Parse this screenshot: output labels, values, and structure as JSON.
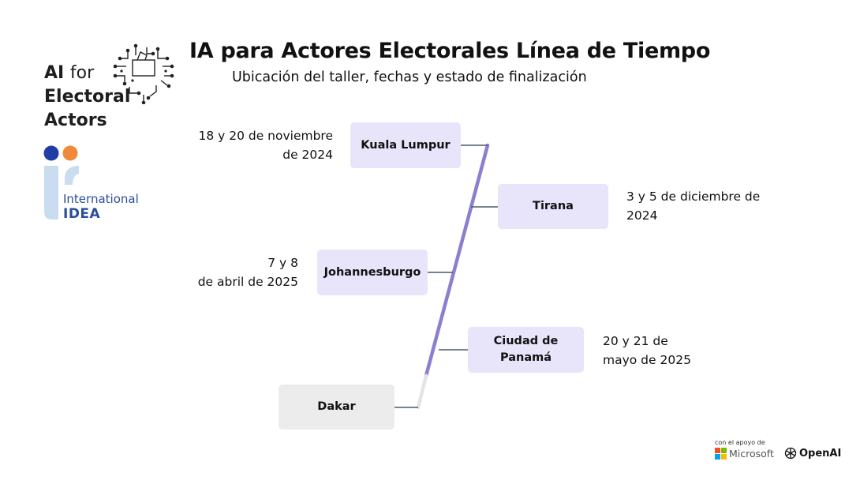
{
  "title": "IA para Actores Electorales Línea de Tiempo",
  "subtitle": "Ubicación del taller, fechas y estado de finalización",
  "brand": {
    "line1_bold": "AI",
    "line1_rest": "for",
    "line2": "Electoral",
    "line3": "Actors"
  },
  "org": {
    "line1": "International",
    "line2": "IDEA"
  },
  "timeline": [
    {
      "location": "Kuala Lumpur",
      "date_line1": "18 y 20 de noviembre",
      "date_line2": "de 2024",
      "status": "completed"
    },
    {
      "location": "Tirana",
      "date_line1": "3 y 5 de diciembre de",
      "date_line2": "2024",
      "status": "completed"
    },
    {
      "location": "Johannesburgo",
      "date_line1": "7 y 8",
      "date_line2": "de abril de 2025",
      "status": "completed"
    },
    {
      "location_line1": "Ciudad de",
      "location_line2": "Panamá",
      "date_line1": "20 y 21 de",
      "date_line2": "mayo de 2025",
      "status": "completed"
    },
    {
      "location": "Dakar",
      "date_line1": "",
      "date_line2": "",
      "status": "pending"
    }
  ],
  "footer": {
    "support_text": "con el apoyo de",
    "partner1": "Microsoft",
    "partner2": "OpenAI"
  },
  "colors": {
    "completed_box": "#e8e4fa",
    "pending_box": "#ececec",
    "timeline_done": "#8b7fd0",
    "timeline_pending": "#e4e4e4",
    "connector": "#4a5a6a",
    "idea_blue": "#2a4d9c",
    "idea_orange": "#f08a3a"
  }
}
